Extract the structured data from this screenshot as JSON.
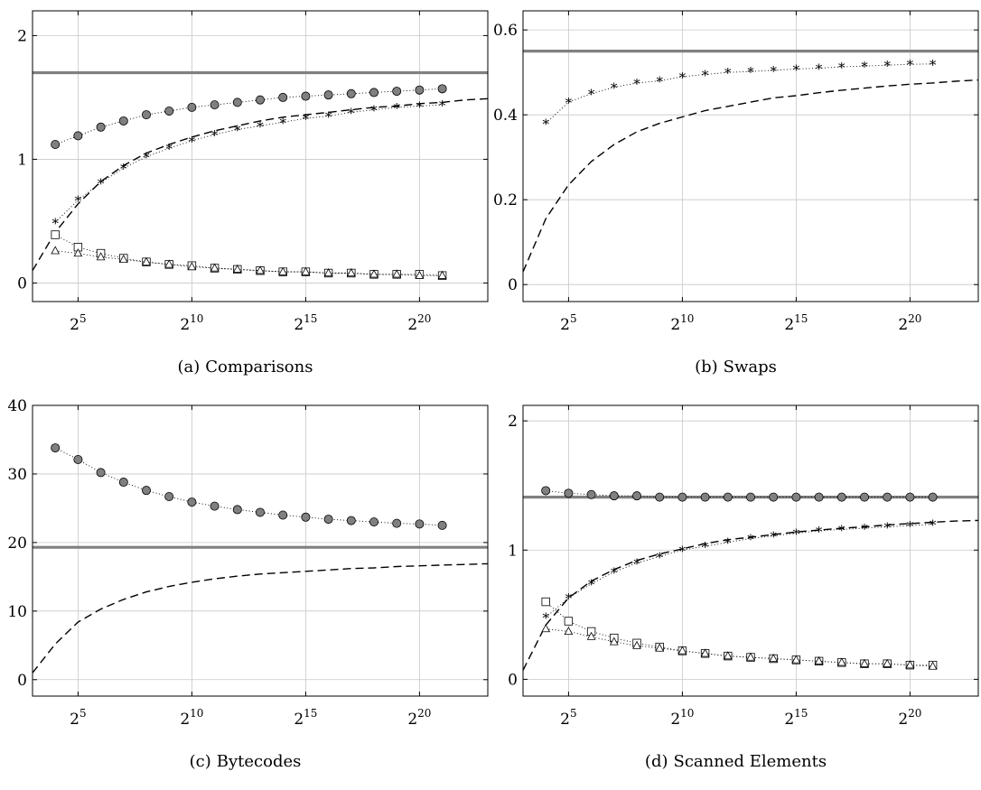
{
  "chart_data": [
    {
      "type": "line",
      "tag": "(a)",
      "title": "Comparisons",
      "x_scale": "log2",
      "xlim": [
        8,
        8388608
      ],
      "ylim": [
        -0.15,
        2.2
      ],
      "x_ticks": [
        {
          "exp": "5",
          "value": 32
        },
        {
          "exp": "10",
          "value": 1024
        },
        {
          "exp": "15",
          "value": 32768
        },
        {
          "exp": "20",
          "value": 1048576
        }
      ],
      "y_ticks": [
        {
          "label": "0",
          "value": 0
        },
        {
          "label": "1",
          "value": 1
        },
        {
          "label": "2",
          "value": 2
        }
      ],
      "grid": true,
      "reference_lines": [
        {
          "value": 1.7,
          "color": "#808080"
        }
      ],
      "dashed_curve": {
        "x": [
          8,
          16,
          32,
          64,
          128,
          256,
          512,
          1024,
          2048,
          4096,
          8192,
          16384,
          32768,
          65536,
          131072,
          262144,
          524288,
          1048576,
          2097152,
          4194304,
          8388608
        ],
        "y": [
          0.1,
          0.41,
          0.64,
          0.82,
          0.95,
          1.05,
          1.12,
          1.18,
          1.23,
          1.27,
          1.31,
          1.34,
          1.36,
          1.38,
          1.4,
          1.42,
          1.43,
          1.45,
          1.46,
          1.48,
          1.49
        ]
      },
      "x": [
        16,
        32,
        64,
        128,
        256,
        512,
        1024,
        2048,
        4096,
        8192,
        16384,
        32768,
        65536,
        131072,
        262144,
        524288,
        1048576,
        2097152
      ],
      "series": [
        {
          "marker": "circle",
          "values": [
            1.12,
            1.19,
            1.26,
            1.31,
            1.36,
            1.39,
            1.42,
            1.44,
            1.46,
            1.48,
            1.5,
            1.51,
            1.52,
            1.53,
            1.54,
            1.55,
            1.56,
            1.57
          ]
        },
        {
          "marker": "star",
          "values": [
            0.49,
            0.67,
            0.81,
            0.93,
            1.02,
            1.09,
            1.15,
            1.2,
            1.24,
            1.27,
            1.3,
            1.33,
            1.35,
            1.38,
            1.4,
            1.42,
            1.43,
            1.44
          ]
        },
        {
          "marker": "square",
          "values": [
            0.39,
            0.29,
            0.24,
            0.2,
            0.17,
            0.15,
            0.14,
            0.12,
            0.11,
            0.1,
            0.09,
            0.09,
            0.08,
            0.08,
            0.07,
            0.07,
            0.07,
            0.06
          ]
        },
        {
          "marker": "triangle",
          "values": [
            0.26,
            0.24,
            0.21,
            0.19,
            0.17,
            0.15,
            0.13,
            0.12,
            0.11,
            0.1,
            0.09,
            0.09,
            0.08,
            0.08,
            0.07,
            0.07,
            0.06,
            0.06
          ]
        }
      ]
    },
    {
      "type": "line",
      "tag": "(b)",
      "title": "Swaps",
      "x_scale": "log2",
      "xlim": [
        8,
        8388608
      ],
      "ylim": [
        -0.04,
        0.645
      ],
      "x_ticks": [
        {
          "exp": "5",
          "value": 32
        },
        {
          "exp": "10",
          "value": 1024
        },
        {
          "exp": "15",
          "value": 32768
        },
        {
          "exp": "20",
          "value": 1048576
        }
      ],
      "y_ticks": [
        {
          "label": "0",
          "value": 0
        },
        {
          "label": "0.2",
          "value": 0.2
        },
        {
          "label": "0.4",
          "value": 0.4
        },
        {
          "label": "0.6",
          "value": 0.6
        }
      ],
      "grid": true,
      "reference_lines": [
        {
          "value": 0.55,
          "color": "#808080"
        }
      ],
      "dashed_curve": {
        "x": [
          8,
          16,
          32,
          64,
          128,
          256,
          512,
          1024,
          2048,
          4096,
          8192,
          16384,
          32768,
          65536,
          131072,
          262144,
          524288,
          1048576,
          2097152,
          4194304,
          8388608
        ],
        "y": [
          0.03,
          0.155,
          0.235,
          0.29,
          0.33,
          0.36,
          0.38,
          0.395,
          0.41,
          0.42,
          0.43,
          0.44,
          0.445,
          0.452,
          0.458,
          0.463,
          0.468,
          0.472,
          0.475,
          0.479,
          0.482
        ]
      },
      "x": [
        16,
        32,
        64,
        128,
        256,
        512,
        1024,
        2048,
        4096,
        8192,
        16384,
        32768,
        65536,
        131072,
        262144,
        524288,
        1048576,
        2097152
      ],
      "series": [
        {
          "marker": "star",
          "values": [
            0.38,
            0.43,
            0.45,
            0.465,
            0.475,
            0.48,
            0.49,
            0.495,
            0.5,
            0.502,
            0.505,
            0.508,
            0.51,
            0.513,
            0.515,
            0.517,
            0.519,
            0.52
          ]
        }
      ]
    },
    {
      "type": "line",
      "tag": "(c)",
      "title": "Bytecodes",
      "x_scale": "log2",
      "xlim": [
        8,
        8388608
      ],
      "ylim": [
        -2.4,
        40
      ],
      "x_ticks": [
        {
          "exp": "5",
          "value": 32
        },
        {
          "exp": "10",
          "value": 1024
        },
        {
          "exp": "15",
          "value": 32768
        },
        {
          "exp": "20",
          "value": 1048576
        }
      ],
      "y_ticks": [
        {
          "label": "0",
          "value": 0
        },
        {
          "label": "10",
          "value": 10
        },
        {
          "label": "20",
          "value": 20
        },
        {
          "label": "30",
          "value": 30
        },
        {
          "label": "40",
          "value": 40
        }
      ],
      "grid": true,
      "reference_lines": [
        {
          "value": 19.3,
          "color": "#808080"
        }
      ],
      "dashed_curve": {
        "x": [
          8,
          16,
          32,
          64,
          128,
          256,
          512,
          1024,
          2048,
          4096,
          8192,
          16384,
          32768,
          65536,
          131072,
          262144,
          524288,
          1048576,
          2097152,
          4194304,
          8388608
        ],
        "y": [
          1.0,
          5.2,
          8.4,
          10.3,
          11.7,
          12.8,
          13.6,
          14.2,
          14.7,
          15.1,
          15.4,
          15.6,
          15.8,
          16.0,
          16.2,
          16.3,
          16.5,
          16.6,
          16.7,
          16.8,
          16.9
        ]
      },
      "x": [
        16,
        32,
        64,
        128,
        256,
        512,
        1024,
        2048,
        4096,
        8192,
        16384,
        32768,
        65536,
        131072,
        262144,
        524288,
        1048576,
        2097152
      ],
      "series": [
        {
          "marker": "circle",
          "values": [
            33.8,
            32.1,
            30.2,
            28.8,
            27.6,
            26.7,
            25.9,
            25.3,
            24.8,
            24.4,
            24.0,
            23.7,
            23.4,
            23.2,
            23.0,
            22.8,
            22.7,
            22.5
          ]
        }
      ]
    },
    {
      "type": "line",
      "tag": "(d)",
      "title": "Scanned Elements",
      "x_scale": "log2",
      "xlim": [
        8,
        8388608
      ],
      "ylim": [
        -0.13,
        2.12
      ],
      "x_ticks": [
        {
          "exp": "5",
          "value": 32
        },
        {
          "exp": "10",
          "value": 1024
        },
        {
          "exp": "15",
          "value": 32768
        },
        {
          "exp": "20",
          "value": 1048576
        }
      ],
      "y_ticks": [
        {
          "label": "0",
          "value": 0
        },
        {
          "label": "1",
          "value": 1
        },
        {
          "label": "2",
          "value": 2
        }
      ],
      "grid": true,
      "reference_lines": [
        {
          "value": 1.41,
          "color": "#808080"
        }
      ],
      "dashed_curve": {
        "x": [
          8,
          16,
          32,
          64,
          128,
          256,
          512,
          1024,
          2048,
          4096,
          8192,
          16384,
          32768,
          65536,
          131072,
          262144,
          524288,
          1048576,
          2097152,
          4194304,
          8388608
        ],
        "y": [
          0.07,
          0.42,
          0.63,
          0.76,
          0.85,
          0.92,
          0.97,
          1.01,
          1.05,
          1.08,
          1.1,
          1.12,
          1.14,
          1.155,
          1.17,
          1.18,
          1.195,
          1.205,
          1.215,
          1.225,
          1.23
        ]
      },
      "x": [
        16,
        32,
        64,
        128,
        256,
        512,
        1024,
        2048,
        4096,
        8192,
        16384,
        32768,
        65536,
        131072,
        262144,
        524288,
        1048576,
        2097152
      ],
      "series": [
        {
          "marker": "circle",
          "values": [
            1.46,
            1.44,
            1.43,
            1.42,
            1.42,
            1.41,
            1.41,
            1.41,
            1.41,
            1.41,
            1.41,
            1.41,
            1.41,
            1.41,
            1.41,
            1.41,
            1.41,
            1.41
          ]
        },
        {
          "marker": "star",
          "values": [
            0.48,
            0.63,
            0.74,
            0.83,
            0.9,
            0.95,
            1.0,
            1.03,
            1.06,
            1.09,
            1.11,
            1.13,
            1.15,
            1.16,
            1.17,
            1.18,
            1.19,
            1.2
          ]
        },
        {
          "marker": "square",
          "values": [
            0.6,
            0.45,
            0.37,
            0.32,
            0.28,
            0.25,
            0.22,
            0.2,
            0.18,
            0.17,
            0.16,
            0.15,
            0.14,
            0.13,
            0.12,
            0.12,
            0.11,
            0.11
          ]
        },
        {
          "marker": "triangle",
          "values": [
            0.39,
            0.37,
            0.33,
            0.29,
            0.26,
            0.24,
            0.22,
            0.2,
            0.18,
            0.17,
            0.16,
            0.15,
            0.14,
            0.13,
            0.12,
            0.12,
            0.11,
            0.1
          ]
        }
      ]
    }
  ]
}
